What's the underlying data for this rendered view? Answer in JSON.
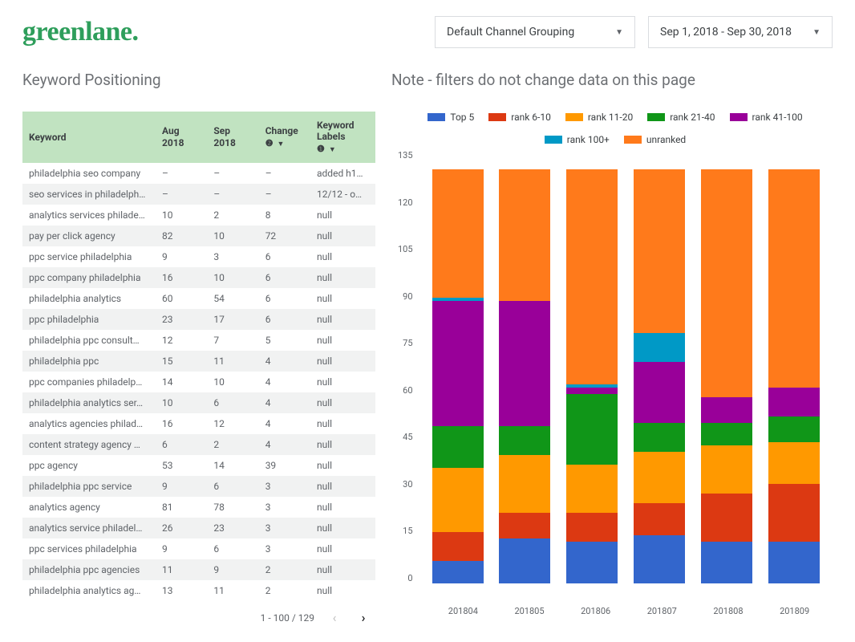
{
  "logo": "greenlane.",
  "filters": {
    "channel_grouping": "Default Channel Grouping",
    "date_range": "Sep 1, 2018 - Sep 30, 2018"
  },
  "titles": {
    "left": "Keyword Positioning",
    "right": "Note - filters do not change data on this page"
  },
  "table": {
    "columns": [
      "Keyword",
      "Aug 2018",
      "Sep 2018",
      "Change",
      "Keyword Labels"
    ],
    "header_bg": "#c1e3c1",
    "row_alt_bg": "#f1f2f2",
    "rows": [
      [
        "philadelphia seo company",
        "–",
        "–",
        "–",
        "added h1…"
      ],
      [
        "seo services in philadelph…",
        "–",
        "–",
        "–",
        "12/12 - o…"
      ],
      [
        "analytics services philade…",
        "10",
        "2",
        "8",
        "null"
      ],
      [
        "pay per click agency",
        "82",
        "10",
        "72",
        "null"
      ],
      [
        "ppc service philadelphia",
        "9",
        "3",
        "6",
        "null"
      ],
      [
        "ppc company philadelphia",
        "16",
        "10",
        "6",
        "null"
      ],
      [
        "philadelphia analytics",
        "60",
        "54",
        "6",
        "null"
      ],
      [
        "ppc philadelphia",
        "23",
        "17",
        "6",
        "null"
      ],
      [
        "philadelphia ppc consult…",
        "12",
        "7",
        "5",
        "null"
      ],
      [
        "philadelphia ppc",
        "15",
        "11",
        "4",
        "null"
      ],
      [
        "ppc companies philadelp…",
        "14",
        "10",
        "4",
        "null"
      ],
      [
        "philadelphia analytics ser…",
        "10",
        "6",
        "4",
        "null"
      ],
      [
        "analytics agencies philad…",
        "16",
        "12",
        "4",
        "null"
      ],
      [
        "content strategy agency …",
        "6",
        "2",
        "4",
        "null"
      ],
      [
        "ppc agency",
        "53",
        "14",
        "39",
        "null"
      ],
      [
        "philadelphia ppc service",
        "9",
        "6",
        "3",
        "null"
      ],
      [
        "analytics agency",
        "81",
        "78",
        "3",
        "null"
      ],
      [
        "analytics service philadel…",
        "26",
        "23",
        "3",
        "null"
      ],
      [
        "ppc services philadelphia",
        "9",
        "6",
        "3",
        "null"
      ],
      [
        "philadelphia ppc agencies",
        "11",
        "9",
        "2",
        "null"
      ],
      [
        "philadelphia analytics ag…",
        "13",
        "11",
        "2",
        "null"
      ]
    ],
    "pager": "1 - 100 / 129"
  },
  "chart": {
    "type": "stacked-bar",
    "ylim": [
      0,
      135
    ],
    "ytick_step": 15,
    "yticks": [
      "135",
      "120",
      "105",
      "90",
      "75",
      "60",
      "45",
      "30",
      "15",
      "0"
    ],
    "categories": [
      "201804",
      "201805",
      "201806",
      "201807",
      "201808",
      "201809"
    ],
    "series": [
      {
        "name": "Top 5",
        "color": "#3366cc"
      },
      {
        "name": "rank 6-10",
        "color": "#dc3912"
      },
      {
        "name": "rank 11-20",
        "color": "#ff9900"
      },
      {
        "name": "rank 21-40",
        "color": "#109618"
      },
      {
        "name": "rank 41-100",
        "color": "#990099"
      },
      {
        "name": "rank 100+",
        "color": "#0099c6"
      },
      {
        "name": "unranked",
        "color": "#ff7a1b"
      }
    ],
    "stacks": [
      [
        7,
        9,
        20,
        13,
        39,
        1,
        40
      ],
      [
        14,
        8,
        18,
        9,
        39,
        0,
        41
      ],
      [
        13,
        9,
        15,
        22,
        2,
        1,
        67
      ],
      [
        15,
        10,
        16,
        9,
        19,
        9,
        51
      ],
      [
        13,
        15,
        15,
        7,
        8,
        0,
        71
      ],
      [
        13,
        18,
        13,
        8,
        9,
        0,
        68
      ]
    ],
    "background_color": "#ffffff"
  }
}
